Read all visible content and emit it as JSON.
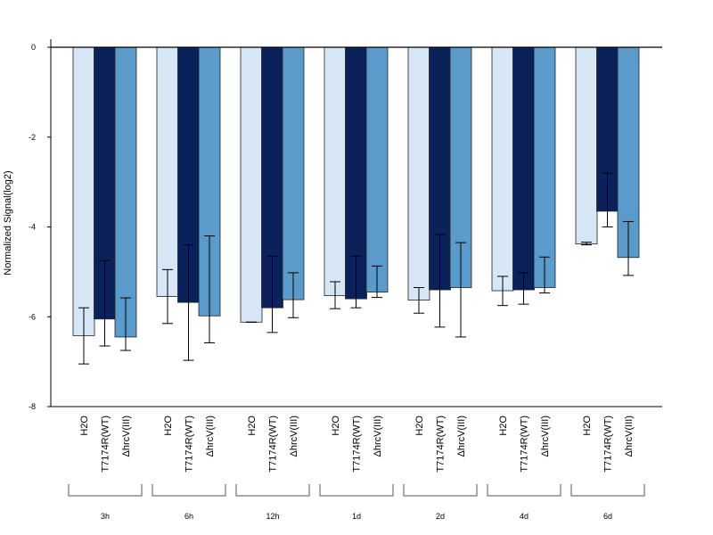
{
  "chart_data": {
    "type": "bar",
    "ylabel": "Normalized Signal(log2)",
    "ylim": [
      -8,
      0
    ],
    "yticks": [
      "0",
      "-2",
      "-4",
      "-6",
      "-8"
    ],
    "groups": [
      "3h",
      "6h",
      "12h",
      "1d",
      "2d",
      "4d",
      "6d"
    ],
    "bar_labels": [
      "H2O",
      "T7174R(WT)",
      "ΔhrcV(III)"
    ],
    "colors": [
      "#d6e6f5",
      "#0a2159",
      "#5b9bcb"
    ],
    "series": [
      {
        "values": [
          -6.42,
          -5.55,
          -6.12,
          -5.53,
          -5.63,
          -5.42,
          -4.38
        ],
        "err_low": [
          -7.05,
          -6.15,
          -6.12,
          -5.82,
          -5.92,
          -5.75,
          -4.4
        ],
        "err_high": [
          -5.8,
          -4.95,
          -6.12,
          -5.22,
          -5.35,
          -5.1,
          -4.34
        ]
      },
      {
        "values": [
          -6.05,
          -5.68,
          -5.8,
          -5.6,
          -5.4,
          -5.4,
          -3.65
        ],
        "err_low": [
          -6.65,
          -6.97,
          -6.35,
          -5.8,
          -6.23,
          -5.72,
          -4.0
        ],
        "err_high": [
          -4.75,
          -4.4,
          -4.65,
          -4.65,
          -4.17,
          -5.02,
          -2.8
        ]
      },
      {
        "values": [
          -6.45,
          -5.98,
          -5.62,
          -5.45,
          -5.35,
          -5.35,
          -4.68
        ],
        "err_low": [
          -6.75,
          -6.58,
          -6.02,
          -5.57,
          -6.45,
          -5.47,
          -5.08
        ],
        "err_high": [
          -5.58,
          -4.2,
          -5.02,
          -4.87,
          -4.35,
          -4.67,
          -3.88
        ]
      }
    ]
  }
}
